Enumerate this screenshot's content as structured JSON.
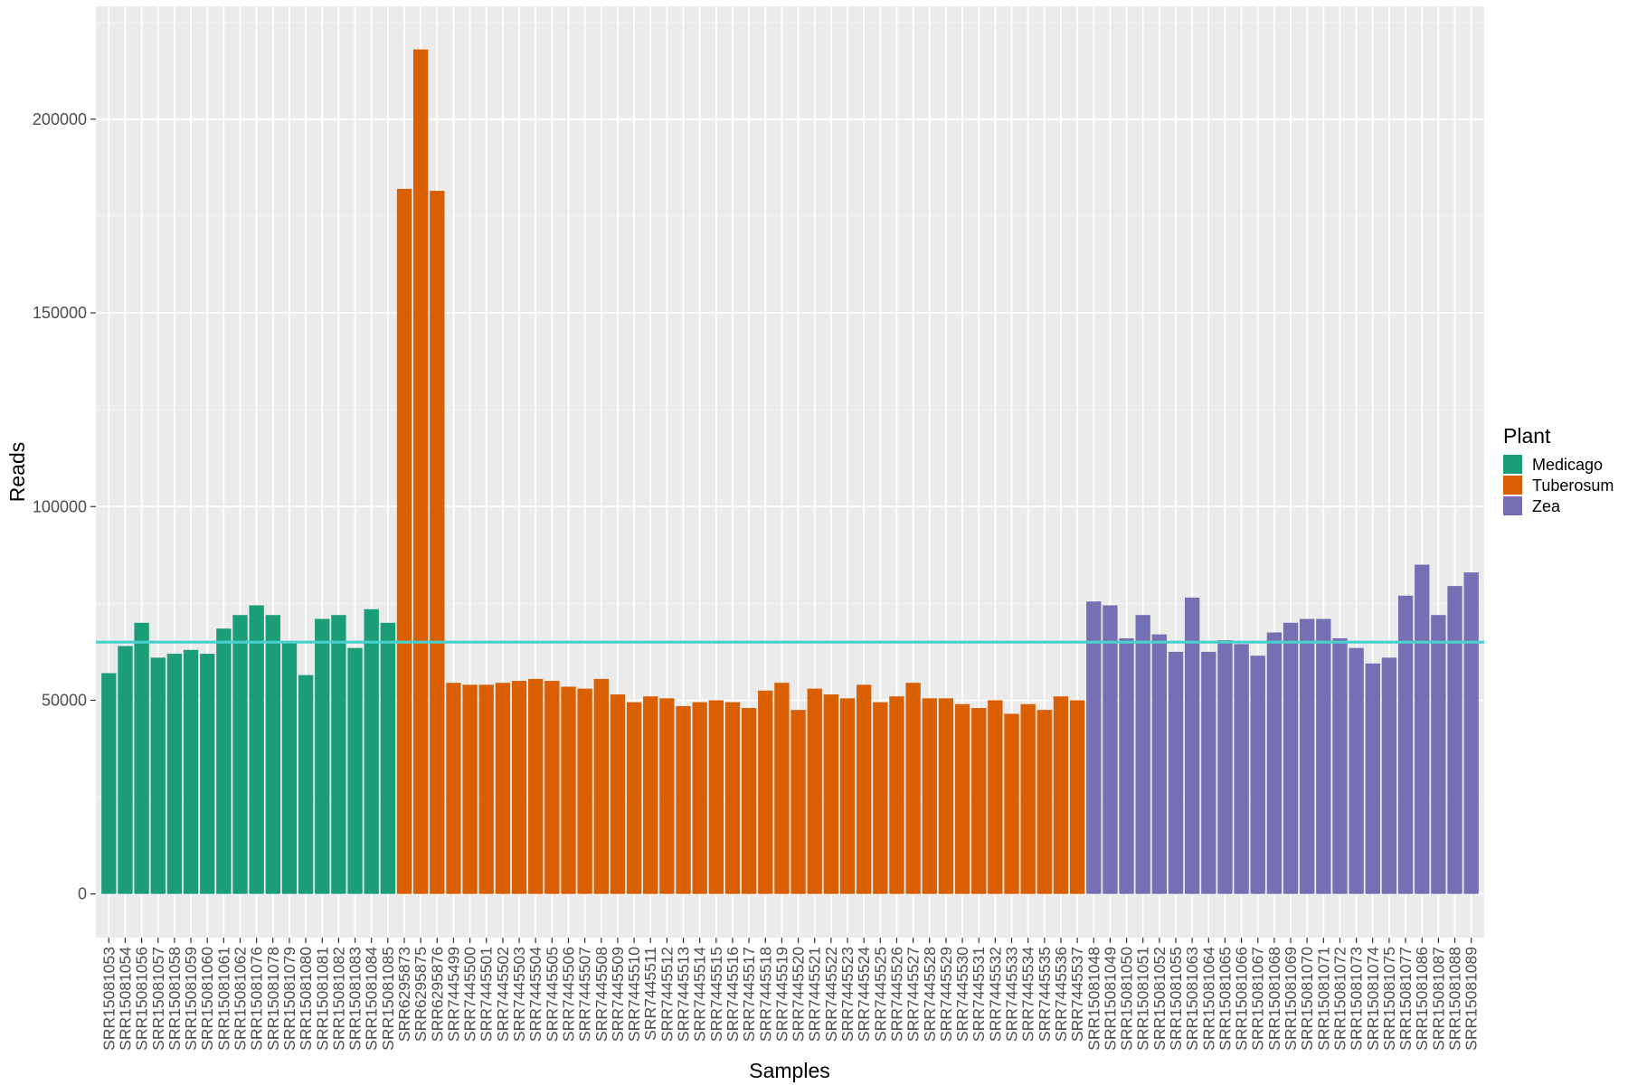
{
  "chart_data": {
    "type": "bar",
    "title": "",
    "xlabel": "Samples",
    "ylabel": "Reads",
    "ylim": [
      -10000,
      228000
    ],
    "y_ticks": [
      0,
      50000,
      100000,
      150000,
      200000
    ],
    "grid": true,
    "legend": {
      "title": "Plant",
      "position": "right",
      "entries": [
        {
          "name": "Medicago",
          "color": "#1b9e77"
        },
        {
          "name": "Tuberosum",
          "color": "#d95f02"
        },
        {
          "name": "Zea",
          "color": "#7570b3"
        }
      ]
    },
    "reference_line": {
      "y": 65000,
      "color": "#48d1cc"
    },
    "categories": [
      "SRR15081053",
      "SRR15081054",
      "SRR15081056",
      "SRR15081057",
      "SRR15081058",
      "SRR15081059",
      "SRR15081060",
      "SRR15081061",
      "SRR15081062",
      "SRR15081076",
      "SRR15081078",
      "SRR15081079",
      "SRR15081080",
      "SRR15081081",
      "SRR15081082",
      "SRR15081083",
      "SRR15081084",
      "SRR15081085",
      "SRR6295873",
      "SRR6295875",
      "SRR6295876",
      "SRR7445499",
      "SRR7445500",
      "SRR7445501",
      "SRR7445502",
      "SRR7445503",
      "SRR7445504",
      "SRR7445505",
      "SRR7445506",
      "SRR7445507",
      "SRR7445508",
      "SRR7445509",
      "SRR7445510",
      "SRR7445511",
      "SRR7445512",
      "SRR7445513",
      "SRR7445514",
      "SRR7445515",
      "SRR7445516",
      "SRR7445517",
      "SRR7445518",
      "SRR7445519",
      "SRR7445520",
      "SRR7445521",
      "SRR7445522",
      "SRR7445523",
      "SRR7445524",
      "SRR7445525",
      "SRR7445526",
      "SRR7445527",
      "SRR7445528",
      "SRR7445529",
      "SRR7445530",
      "SRR7445531",
      "SRR7445532",
      "SRR7445533",
      "SRR7445534",
      "SRR7445535",
      "SRR7445536",
      "SRR7445537",
      "SRR15081048",
      "SRR15081049",
      "SRR15081050",
      "SRR15081051",
      "SRR15081052",
      "SRR15081055",
      "SRR15081063",
      "SRR15081064",
      "SRR15081065",
      "SRR15081066",
      "SRR15081067",
      "SRR15081068",
      "SRR15081069",
      "SRR15081070",
      "SRR15081071",
      "SRR15081072",
      "SRR15081073",
      "SRR15081074",
      "SRR15081075",
      "SRR15081077",
      "SRR15081086",
      "SRR15081087",
      "SRR15081088",
      "SRR15081089"
    ],
    "groups": [
      "Medicago",
      "Medicago",
      "Medicago",
      "Medicago",
      "Medicago",
      "Medicago",
      "Medicago",
      "Medicago",
      "Medicago",
      "Medicago",
      "Medicago",
      "Medicago",
      "Medicago",
      "Medicago",
      "Medicago",
      "Medicago",
      "Medicago",
      "Medicago",
      "Tuberosum",
      "Tuberosum",
      "Tuberosum",
      "Tuberosum",
      "Tuberosum",
      "Tuberosum",
      "Tuberosum",
      "Tuberosum",
      "Tuberosum",
      "Tuberosum",
      "Tuberosum",
      "Tuberosum",
      "Tuberosum",
      "Tuberosum",
      "Tuberosum",
      "Tuberosum",
      "Tuberosum",
      "Tuberosum",
      "Tuberosum",
      "Tuberosum",
      "Tuberosum",
      "Tuberosum",
      "Tuberosum",
      "Tuberosum",
      "Tuberosum",
      "Tuberosum",
      "Tuberosum",
      "Tuberosum",
      "Tuberosum",
      "Tuberosum",
      "Tuberosum",
      "Tuberosum",
      "Tuberosum",
      "Tuberosum",
      "Tuberosum",
      "Tuberosum",
      "Tuberosum",
      "Tuberosum",
      "Tuberosum",
      "Tuberosum",
      "Tuberosum",
      "Tuberosum",
      "Zea",
      "Zea",
      "Zea",
      "Zea",
      "Zea",
      "Zea",
      "Zea",
      "Zea",
      "Zea",
      "Zea",
      "Zea",
      "Zea",
      "Zea",
      "Zea",
      "Zea",
      "Zea",
      "Zea",
      "Zea",
      "Zea",
      "Zea",
      "Zea",
      "Zea",
      "Zea",
      "Zea"
    ],
    "values": [
      57000,
      64000,
      70000,
      61000,
      62000,
      63000,
      62000,
      68500,
      72000,
      74500,
      72000,
      65000,
      56500,
      71000,
      72000,
      63500,
      73500,
      70000,
      182000,
      218000,
      181500,
      54500,
      54000,
      54000,
      54500,
      55000,
      55500,
      55000,
      53500,
      53000,
      55500,
      51500,
      49500,
      51000,
      50500,
      48500,
      49500,
      50000,
      49500,
      48000,
      52500,
      54500,
      47500,
      53000,
      51500,
      50500,
      54000,
      49500,
      51000,
      54500,
      50500,
      50500,
      49000,
      48000,
      50000,
      46500,
      49000,
      47500,
      51000,
      50000,
      75500,
      74500,
      66000,
      72000,
      67000,
      62500,
      76500,
      62500,
      65500,
      64500,
      61500,
      67500,
      70000,
      71000,
      71000,
      66000,
      63500,
      59500,
      61000,
      77000,
      85000,
      72000,
      79500,
      83000
    ]
  }
}
